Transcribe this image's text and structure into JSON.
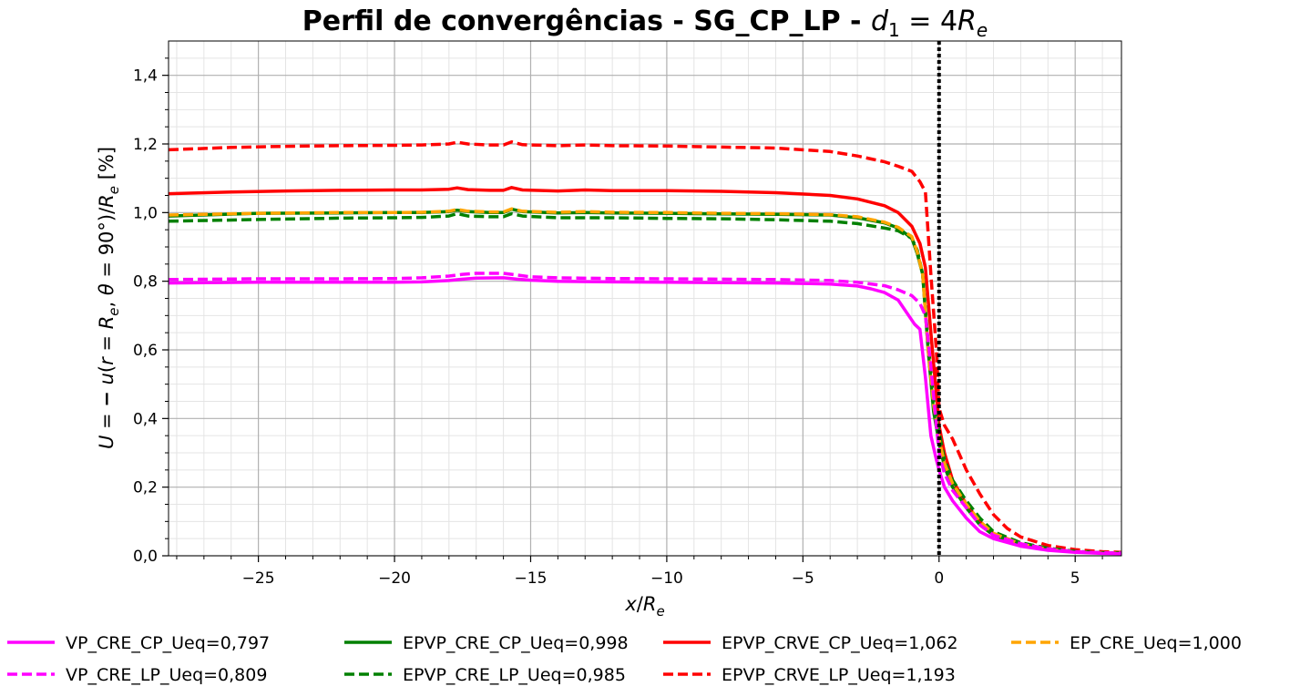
{
  "chart_data": {
    "type": "line",
    "title": "Perfil de convergências - SG_CP_LP - ",
    "title_math": "d1 = 4Re",
    "xlabel": "x/Re",
    "ylabel": "U = − u(r = Re, θ = 90°)/Re [%]",
    "xlim": [
      -28.3,
      6.7
    ],
    "ylim": [
      0.0,
      1.5
    ],
    "xticks": [
      -25,
      -20,
      -15,
      -10,
      -5,
      0,
      5
    ],
    "yticks": [
      0.0,
      0.2,
      0.4,
      0.6,
      0.8,
      1.0,
      1.2,
      1.4
    ],
    "grid": true,
    "minor_grid": true,
    "vline": {
      "x": 0,
      "style": "dotted",
      "color": "#000000"
    },
    "legend_position": "bottom",
    "series": [
      {
        "name": "VP_CRE_CP_Ueq=0,797",
        "color": "#ff00ff",
        "dash": "solid",
        "points": [
          [
            -28.3,
            0.795
          ],
          [
            -25,
            0.797
          ],
          [
            -22,
            0.797
          ],
          [
            -20,
            0.797
          ],
          [
            -19,
            0.798
          ],
          [
            -18,
            0.802
          ],
          [
            -17.5,
            0.806
          ],
          [
            -17,
            0.809
          ],
          [
            -16,
            0.81
          ],
          [
            -15.5,
            0.806
          ],
          [
            -15,
            0.803
          ],
          [
            -14,
            0.8
          ],
          [
            -12,
            0.798
          ],
          [
            -10,
            0.797
          ],
          [
            -8,
            0.796
          ],
          [
            -6,
            0.795
          ],
          [
            -4,
            0.792
          ],
          [
            -3,
            0.786
          ],
          [
            -2.5,
            0.778
          ],
          [
            -2,
            0.767
          ],
          [
            -1.5,
            0.745
          ],
          [
            -1.2,
            0.71
          ],
          [
            -0.9,
            0.675
          ],
          [
            -0.7,
            0.66
          ],
          [
            -0.5,
            0.52
          ],
          [
            -0.3,
            0.35
          ],
          [
            -0.1,
            0.28
          ],
          [
            0,
            0.25
          ],
          [
            0.2,
            0.2
          ],
          [
            0.5,
            0.16
          ],
          [
            1,
            0.11
          ],
          [
            1.5,
            0.07
          ],
          [
            2,
            0.05
          ],
          [
            3,
            0.028
          ],
          [
            4,
            0.016
          ],
          [
            5,
            0.01
          ],
          [
            6,
            0.007
          ],
          [
            6.7,
            0.006
          ]
        ]
      },
      {
        "name": "VP_CRE_LP_Ueq=0,809",
        "color": "#ff00ff",
        "dash": "dashed",
        "points": [
          [
            -28.3,
            0.805
          ],
          [
            -25,
            0.807
          ],
          [
            -22,
            0.807
          ],
          [
            -20,
            0.808
          ],
          [
            -19,
            0.81
          ],
          [
            -18,
            0.815
          ],
          [
            -17.5,
            0.82
          ],
          [
            -17,
            0.823
          ],
          [
            -16,
            0.823
          ],
          [
            -15.5,
            0.818
          ],
          [
            -15,
            0.813
          ],
          [
            -14,
            0.81
          ],
          [
            -12,
            0.808
          ],
          [
            -10,
            0.807
          ],
          [
            -8,
            0.806
          ],
          [
            -6,
            0.805
          ],
          [
            -4,
            0.802
          ],
          [
            -3,
            0.797
          ],
          [
            -2,
            0.787
          ],
          [
            -1.5,
            0.775
          ],
          [
            -1,
            0.758
          ],
          [
            -0.7,
            0.735
          ],
          [
            -0.5,
            0.7
          ],
          [
            -0.3,
            0.55
          ],
          [
            -0.1,
            0.38
          ],
          [
            0,
            0.3
          ],
          [
            0.2,
            0.24
          ],
          [
            0.5,
            0.19
          ],
          [
            1,
            0.14
          ],
          [
            1.5,
            0.09
          ],
          [
            2,
            0.06
          ],
          [
            3,
            0.035
          ],
          [
            4,
            0.02
          ],
          [
            5,
            0.012
          ],
          [
            6,
            0.009
          ],
          [
            6.7,
            0.008
          ]
        ]
      },
      {
        "name": "EPVP_CRE_CP_Ueq=0,998",
        "color": "#008000",
        "dash": "solid",
        "points": [
          [
            -28.3,
            0.99
          ],
          [
            -25,
            0.998
          ],
          [
            -22,
            0.999
          ],
          [
            -20,
            1.0
          ],
          [
            -19,
            1.0
          ],
          [
            -18,
            1.003
          ],
          [
            -17.7,
            1.007
          ],
          [
            -17.3,
            1.003
          ],
          [
            -16.5,
            1.0
          ],
          [
            -16,
            1.0
          ],
          [
            -15.7,
            1.01
          ],
          [
            -15.3,
            1.003
          ],
          [
            -14,
            0.999
          ],
          [
            -13,
            1.0
          ],
          [
            -12,
            0.999
          ],
          [
            -10,
            0.998
          ],
          [
            -8,
            0.996
          ],
          [
            -6,
            0.995
          ],
          [
            -4,
            0.993
          ],
          [
            -3,
            0.985
          ],
          [
            -2,
            0.97
          ],
          [
            -1.5,
            0.955
          ],
          [
            -1,
            0.925
          ],
          [
            -0.8,
            0.88
          ],
          [
            -0.6,
            0.82
          ],
          [
            -0.4,
            0.6
          ],
          [
            -0.2,
            0.42
          ],
          [
            0,
            0.33
          ],
          [
            0.2,
            0.26
          ],
          [
            0.5,
            0.2
          ],
          [
            1,
            0.14
          ],
          [
            1.5,
            0.09
          ],
          [
            2,
            0.06
          ],
          [
            3,
            0.032
          ],
          [
            4,
            0.018
          ],
          [
            5,
            0.011
          ],
          [
            6,
            0.008
          ],
          [
            6.7,
            0.007
          ]
        ]
      },
      {
        "name": "EPVP_CRE_LP_Ueq=0,985",
        "color": "#008000",
        "dash": "dashed",
        "points": [
          [
            -28.3,
            0.975
          ],
          [
            -25,
            0.98
          ],
          [
            -22,
            0.984
          ],
          [
            -20,
            0.985
          ],
          [
            -19,
            0.986
          ],
          [
            -18,
            0.99
          ],
          [
            -17.7,
            0.997
          ],
          [
            -17.3,
            0.99
          ],
          [
            -16.5,
            0.988
          ],
          [
            -16,
            0.988
          ],
          [
            -15.7,
            0.997
          ],
          [
            -15.3,
            0.99
          ],
          [
            -14,
            0.985
          ],
          [
            -12,
            0.985
          ],
          [
            -10,
            0.983
          ],
          [
            -8,
            0.982
          ],
          [
            -6,
            0.979
          ],
          [
            -4,
            0.975
          ],
          [
            -3,
            0.968
          ],
          [
            -2,
            0.955
          ],
          [
            -1.5,
            0.947
          ],
          [
            -1,
            0.925
          ],
          [
            -0.8,
            0.89
          ],
          [
            -0.6,
            0.82
          ],
          [
            -0.4,
            0.62
          ],
          [
            -0.2,
            0.45
          ],
          [
            0,
            0.36
          ],
          [
            0.2,
            0.28
          ],
          [
            0.5,
            0.22
          ],
          [
            1,
            0.16
          ],
          [
            1.5,
            0.11
          ],
          [
            2,
            0.07
          ],
          [
            3,
            0.038
          ],
          [
            4,
            0.022
          ],
          [
            5,
            0.013
          ],
          [
            6,
            0.009
          ],
          [
            6.7,
            0.008
          ]
        ]
      },
      {
        "name": "EPVP_CRVE_CP_Ueq=1,062",
        "color": "#ff0000",
        "dash": "solid",
        "points": [
          [
            -28.3,
            1.055
          ],
          [
            -26,
            1.06
          ],
          [
            -24,
            1.063
          ],
          [
            -22,
            1.065
          ],
          [
            -20,
            1.066
          ],
          [
            -19,
            1.066
          ],
          [
            -18,
            1.068
          ],
          [
            -17.7,
            1.072
          ],
          [
            -17.3,
            1.067
          ],
          [
            -16.5,
            1.065
          ],
          [
            -16,
            1.065
          ],
          [
            -15.7,
            1.073
          ],
          [
            -15.3,
            1.066
          ],
          [
            -14,
            1.063
          ],
          [
            -13,
            1.066
          ],
          [
            -12,
            1.064
          ],
          [
            -10,
            1.064
          ],
          [
            -8,
            1.062
          ],
          [
            -6,
            1.058
          ],
          [
            -4,
            1.05
          ],
          [
            -3,
            1.04
          ],
          [
            -2,
            1.02
          ],
          [
            -1.5,
            1.0
          ],
          [
            -1,
            0.96
          ],
          [
            -0.7,
            0.91
          ],
          [
            -0.5,
            0.84
          ],
          [
            -0.3,
            0.65
          ],
          [
            -0.1,
            0.47
          ],
          [
            0,
            0.38
          ],
          [
            0.2,
            0.3
          ],
          [
            0.5,
            0.22
          ],
          [
            1,
            0.15
          ],
          [
            1.5,
            0.1
          ],
          [
            2,
            0.065
          ],
          [
            3,
            0.035
          ],
          [
            4,
            0.02
          ],
          [
            5,
            0.012
          ],
          [
            6,
            0.009
          ],
          [
            6.7,
            0.008
          ]
        ]
      },
      {
        "name": "EPVP_CRVE_LP_Ueq=1,193",
        "color": "#ff0000",
        "dash": "dashed",
        "points": [
          [
            -28.3,
            1.183
          ],
          [
            -26,
            1.19
          ],
          [
            -24,
            1.193
          ],
          [
            -22,
            1.195
          ],
          [
            -20,
            1.196
          ],
          [
            -19,
            1.197
          ],
          [
            -18,
            1.2
          ],
          [
            -17.7,
            1.205
          ],
          [
            -17.3,
            1.2
          ],
          [
            -16.5,
            1.197
          ],
          [
            -16,
            1.197
          ],
          [
            -15.7,
            1.206
          ],
          [
            -15.3,
            1.198
          ],
          [
            -14,
            1.195
          ],
          [
            -13,
            1.197
          ],
          [
            -12,
            1.195
          ],
          [
            -10,
            1.194
          ],
          [
            -8,
            1.191
          ],
          [
            -6,
            1.188
          ],
          [
            -4,
            1.178
          ],
          [
            -3,
            1.165
          ],
          [
            -2,
            1.148
          ],
          [
            -1.5,
            1.135
          ],
          [
            -1,
            1.12
          ],
          [
            -0.7,
            1.09
          ],
          [
            -0.5,
            1.06
          ],
          [
            -0.3,
            0.82
          ],
          [
            -0.1,
            0.6
          ],
          [
            0,
            0.43
          ],
          [
            0.2,
            0.38
          ],
          [
            0.5,
            0.34
          ],
          [
            1,
            0.25
          ],
          [
            1.5,
            0.18
          ],
          [
            2,
            0.12
          ],
          [
            2.5,
            0.08
          ],
          [
            3,
            0.055
          ],
          [
            4,
            0.03
          ],
          [
            5,
            0.018
          ],
          [
            6,
            0.012
          ],
          [
            6.7,
            0.01
          ]
        ]
      },
      {
        "name": "EP_CRE_Ueq=1,000",
        "color": "#ffa500",
        "dash": "dashed",
        "points": [
          [
            -28.3,
            0.993
          ],
          [
            -25,
            0.998
          ],
          [
            -22,
            1.0
          ],
          [
            -20,
            1.0
          ],
          [
            -19,
            1.001
          ],
          [
            -18,
            1.004
          ],
          [
            -17.7,
            1.009
          ],
          [
            -17.3,
            1.004
          ],
          [
            -16.5,
            1.002
          ],
          [
            -16,
            1.002
          ],
          [
            -15.7,
            1.011
          ],
          [
            -15.3,
            1.004
          ],
          [
            -14,
            1.001
          ],
          [
            -13,
            1.003
          ],
          [
            -12,
            1.001
          ],
          [
            -10,
            1.0
          ],
          [
            -8,
            0.998
          ],
          [
            -6,
            0.997
          ],
          [
            -4,
            0.994
          ],
          [
            -3,
            0.988
          ],
          [
            -2,
            0.972
          ],
          [
            -1.5,
            0.957
          ],
          [
            -1,
            0.93
          ],
          [
            -0.8,
            0.885
          ],
          [
            -0.6,
            0.82
          ],
          [
            -0.4,
            0.6
          ],
          [
            -0.2,
            0.44
          ],
          [
            0,
            0.34
          ],
          [
            0.2,
            0.27
          ],
          [
            0.5,
            0.21
          ],
          [
            1,
            0.15
          ],
          [
            1.5,
            0.1
          ],
          [
            2,
            0.065
          ],
          [
            3,
            0.034
          ],
          [
            4,
            0.019
          ],
          [
            5,
            0.011
          ],
          [
            6,
            0.008
          ],
          [
            6.7,
            0.007
          ]
        ]
      }
    ],
    "legend_rows": [
      [
        "VP_CRE_CP_Ueq=0,797",
        "EPVP_CRE_CP_Ueq=0,998",
        "EPVP_CRVE_CP_Ueq=1,062",
        "EP_CRE_Ueq=1,000"
      ],
      [
        "VP_CRE_LP_Ueq=0,809",
        "EPVP_CRE_LP_Ueq=0,985",
        "EPVP_CRVE_LP_Ueq=1,193"
      ]
    ]
  }
}
